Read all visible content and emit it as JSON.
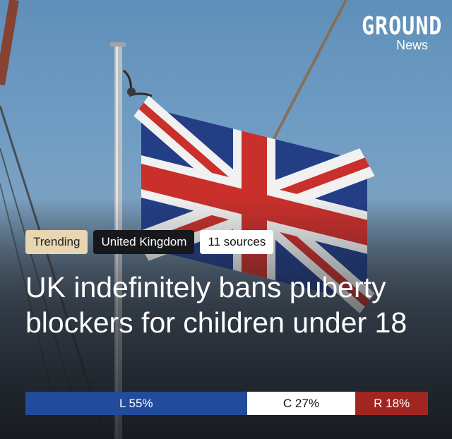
{
  "brand": {
    "logo_word": "GROUND",
    "logo_sub": "News"
  },
  "tags": {
    "trending": "Trending",
    "region": "United Kingdom",
    "sources": "11 sources"
  },
  "headline": "UK indefinitely bans puberty blockers for children under 18",
  "bias": {
    "left": {
      "label": "L 55%",
      "percent": 55
    },
    "center": {
      "label": "C 27%",
      "percent": 27
    },
    "right": {
      "label": "R 18%",
      "percent": 18
    }
  },
  "colors": {
    "left": "#234b9c",
    "center": "#ffffff",
    "right": "#a12622",
    "trending_tag": "#e8d6b3",
    "region_tag": "#16181b"
  }
}
